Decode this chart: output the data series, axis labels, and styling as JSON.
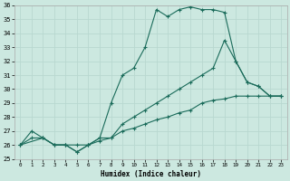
{
  "bg_color": "#cce8e0",
  "line_color": "#1a6b5a",
  "grid_color": "#b8d8d0",
  "xlabel": "Humidex (Indice chaleur)",
  "ylim": [
    25,
    36
  ],
  "xlim": [
    -0.5,
    23.5
  ],
  "yticks": [
    25,
    26,
    27,
    28,
    29,
    30,
    31,
    32,
    33,
    34,
    35,
    36
  ],
  "xticks": [
    0,
    1,
    2,
    3,
    4,
    5,
    6,
    7,
    8,
    9,
    10,
    11,
    12,
    13,
    14,
    15,
    16,
    17,
    18,
    19,
    20,
    21,
    22,
    23
  ],
  "line1_x": [
    0,
    1,
    2,
    3,
    4,
    5,
    6,
    7,
    8,
    9,
    10,
    11,
    12,
    13,
    14,
    15,
    16,
    17,
    18,
    19,
    20,
    21,
    22,
    23
  ],
  "line1_y": [
    26,
    27,
    26.5,
    26,
    26,
    25.5,
    26,
    26.5,
    29,
    31,
    31.5,
    33,
    35.7,
    35.2,
    35.7,
    35.9,
    35.7,
    35.7,
    35.5,
    32,
    30.5,
    30.2,
    29.5,
    29.5
  ],
  "line2_x": [
    0,
    2,
    3,
    4,
    5,
    6,
    7,
    8,
    9,
    10,
    11,
    12,
    13,
    14,
    15,
    16,
    17,
    18,
    19,
    20,
    21,
    22,
    23
  ],
  "line2_y": [
    26,
    26.5,
    26,
    26,
    25.5,
    26,
    26.5,
    26.5,
    27.5,
    28,
    28.5,
    29,
    29.5,
    30,
    30.5,
    31,
    31.5,
    33.5,
    32,
    30.5,
    30.2,
    29.5,
    29.5
  ],
  "line3_x": [
    0,
    1,
    2,
    3,
    4,
    5,
    6,
    7,
    8,
    9,
    10,
    11,
    12,
    13,
    14,
    15,
    16,
    17,
    18,
    19,
    20,
    21,
    22,
    23
  ],
  "line3_y": [
    26,
    26.5,
    26.5,
    26,
    26,
    26,
    26,
    26.3,
    26.5,
    27,
    27.2,
    27.5,
    27.8,
    28,
    28.3,
    28.5,
    29,
    29.2,
    29.3,
    29.5,
    29.5,
    29.5,
    29.5,
    29.5
  ]
}
